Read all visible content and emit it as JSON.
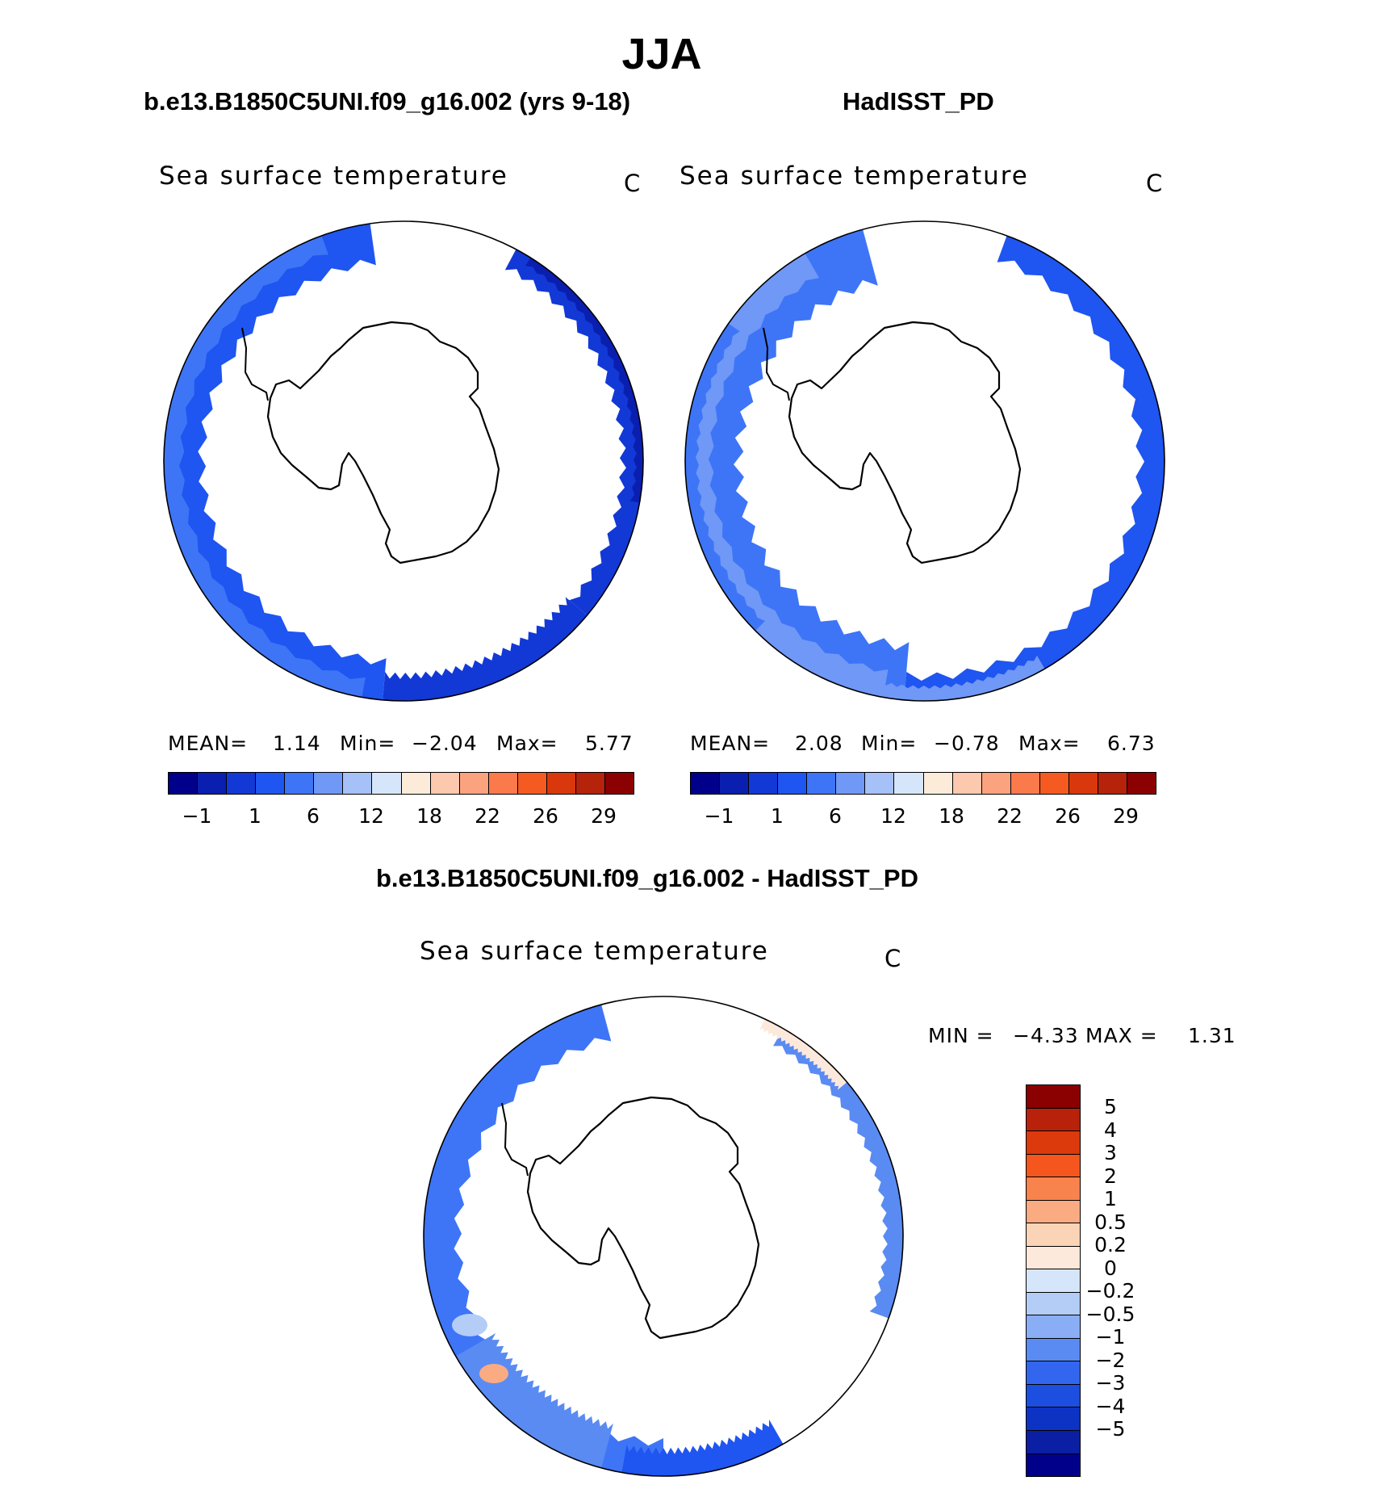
{
  "title": "JJA",
  "panels": {
    "case": {
      "title": "b.e13.B1850C5UNI.f09_g16.002 (yrs 9-18)",
      "field": "Sea surface temperature",
      "units": "C",
      "mean_label": "MEAN=",
      "mean": "1.14",
      "min_label": "Min=",
      "min": "−2.04",
      "max_label": "Max=",
      "max": "5.77"
    },
    "obs": {
      "title": "HadISST_PD",
      "field": "Sea surface temperature",
      "units": "C",
      "mean_label": "MEAN=",
      "mean": "2.08",
      "min_label": "Min=",
      "min": "−0.78",
      "max_label": "Max=",
      "max": "6.73"
    },
    "diff": {
      "title": "b.e13.B1850C5UNI.f09_g16.002 - HadISST_PD",
      "field": "Sea surface temperature",
      "units": "C",
      "min_label": "MIN =",
      "min": "−4.33",
      "max_label": "MAX =",
      "max": "1.31"
    }
  },
  "colorbar_abs": {
    "colors": [
      "#00008b",
      "#0a1fb0",
      "#1239d6",
      "#1f55f0",
      "#3e75f7",
      "#6f98f7",
      "#a5c1f7",
      "#d6e6fa",
      "#fdebda",
      "#fcc9af",
      "#fba37f",
      "#fa7a4c",
      "#f55a20",
      "#d9380c",
      "#b5230a",
      "#8b0000"
    ],
    "ticks": [
      "−1",
      "1",
      "6",
      "12",
      "18",
      "22",
      "26",
      "29"
    ]
  },
  "colorbar_diff": {
    "colors": [
      "#8b0000",
      "#b8220a",
      "#dc3a0d",
      "#f5561d",
      "#f9834d",
      "#fbab82",
      "#fbd4b8",
      "#fde9dc",
      "#d5e6fa",
      "#b3cdf7",
      "#8aaef5",
      "#5a8bf2",
      "#3266ee",
      "#1c4ee0",
      "#0d33c4",
      "#0a1fa3",
      "#00008b"
    ],
    "ticks": [
      "5",
      "4",
      "3",
      "2",
      "1",
      "0.5",
      "0.2",
      "0",
      "−0.2",
      "−0.5",
      "−1",
      "−2",
      "−3",
      "−4",
      "−5"
    ]
  }
}
